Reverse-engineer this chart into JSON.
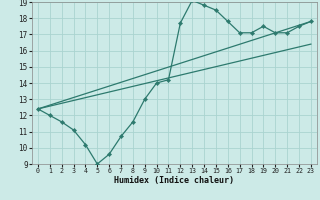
{
  "title": "",
  "xlabel": "Humidex (Indice chaleur)",
  "bg_color": "#cceae7",
  "grid_color": "#aad4d0",
  "line_color": "#2d7a6e",
  "xlim": [
    -0.5,
    23.5
  ],
  "ylim": [
    9,
    19
  ],
  "xticks": [
    0,
    1,
    2,
    3,
    4,
    5,
    6,
    7,
    8,
    9,
    10,
    11,
    12,
    13,
    14,
    15,
    16,
    17,
    18,
    19,
    20,
    21,
    22,
    23
  ],
  "yticks": [
    9,
    10,
    11,
    12,
    13,
    14,
    15,
    16,
    17,
    18,
    19
  ],
  "curve_x": [
    0,
    1,
    2,
    3,
    4,
    5,
    6,
    7,
    8,
    9,
    10,
    11,
    12,
    13,
    14,
    15,
    16,
    17,
    18,
    19,
    20,
    21,
    22,
    23
  ],
  "curve_y": [
    12.4,
    12.0,
    11.6,
    11.1,
    10.2,
    9.0,
    9.6,
    10.7,
    11.6,
    13.0,
    14.0,
    14.2,
    17.7,
    19.1,
    18.8,
    18.5,
    17.8,
    17.1,
    17.1,
    17.5,
    17.1,
    17.1,
    17.5,
    17.8
  ],
  "line1_x": [
    0,
    23
  ],
  "line1_y": [
    12.4,
    17.8
  ],
  "line2_x": [
    0,
    23
  ],
  "line2_y": [
    12.4,
    16.4
  ]
}
